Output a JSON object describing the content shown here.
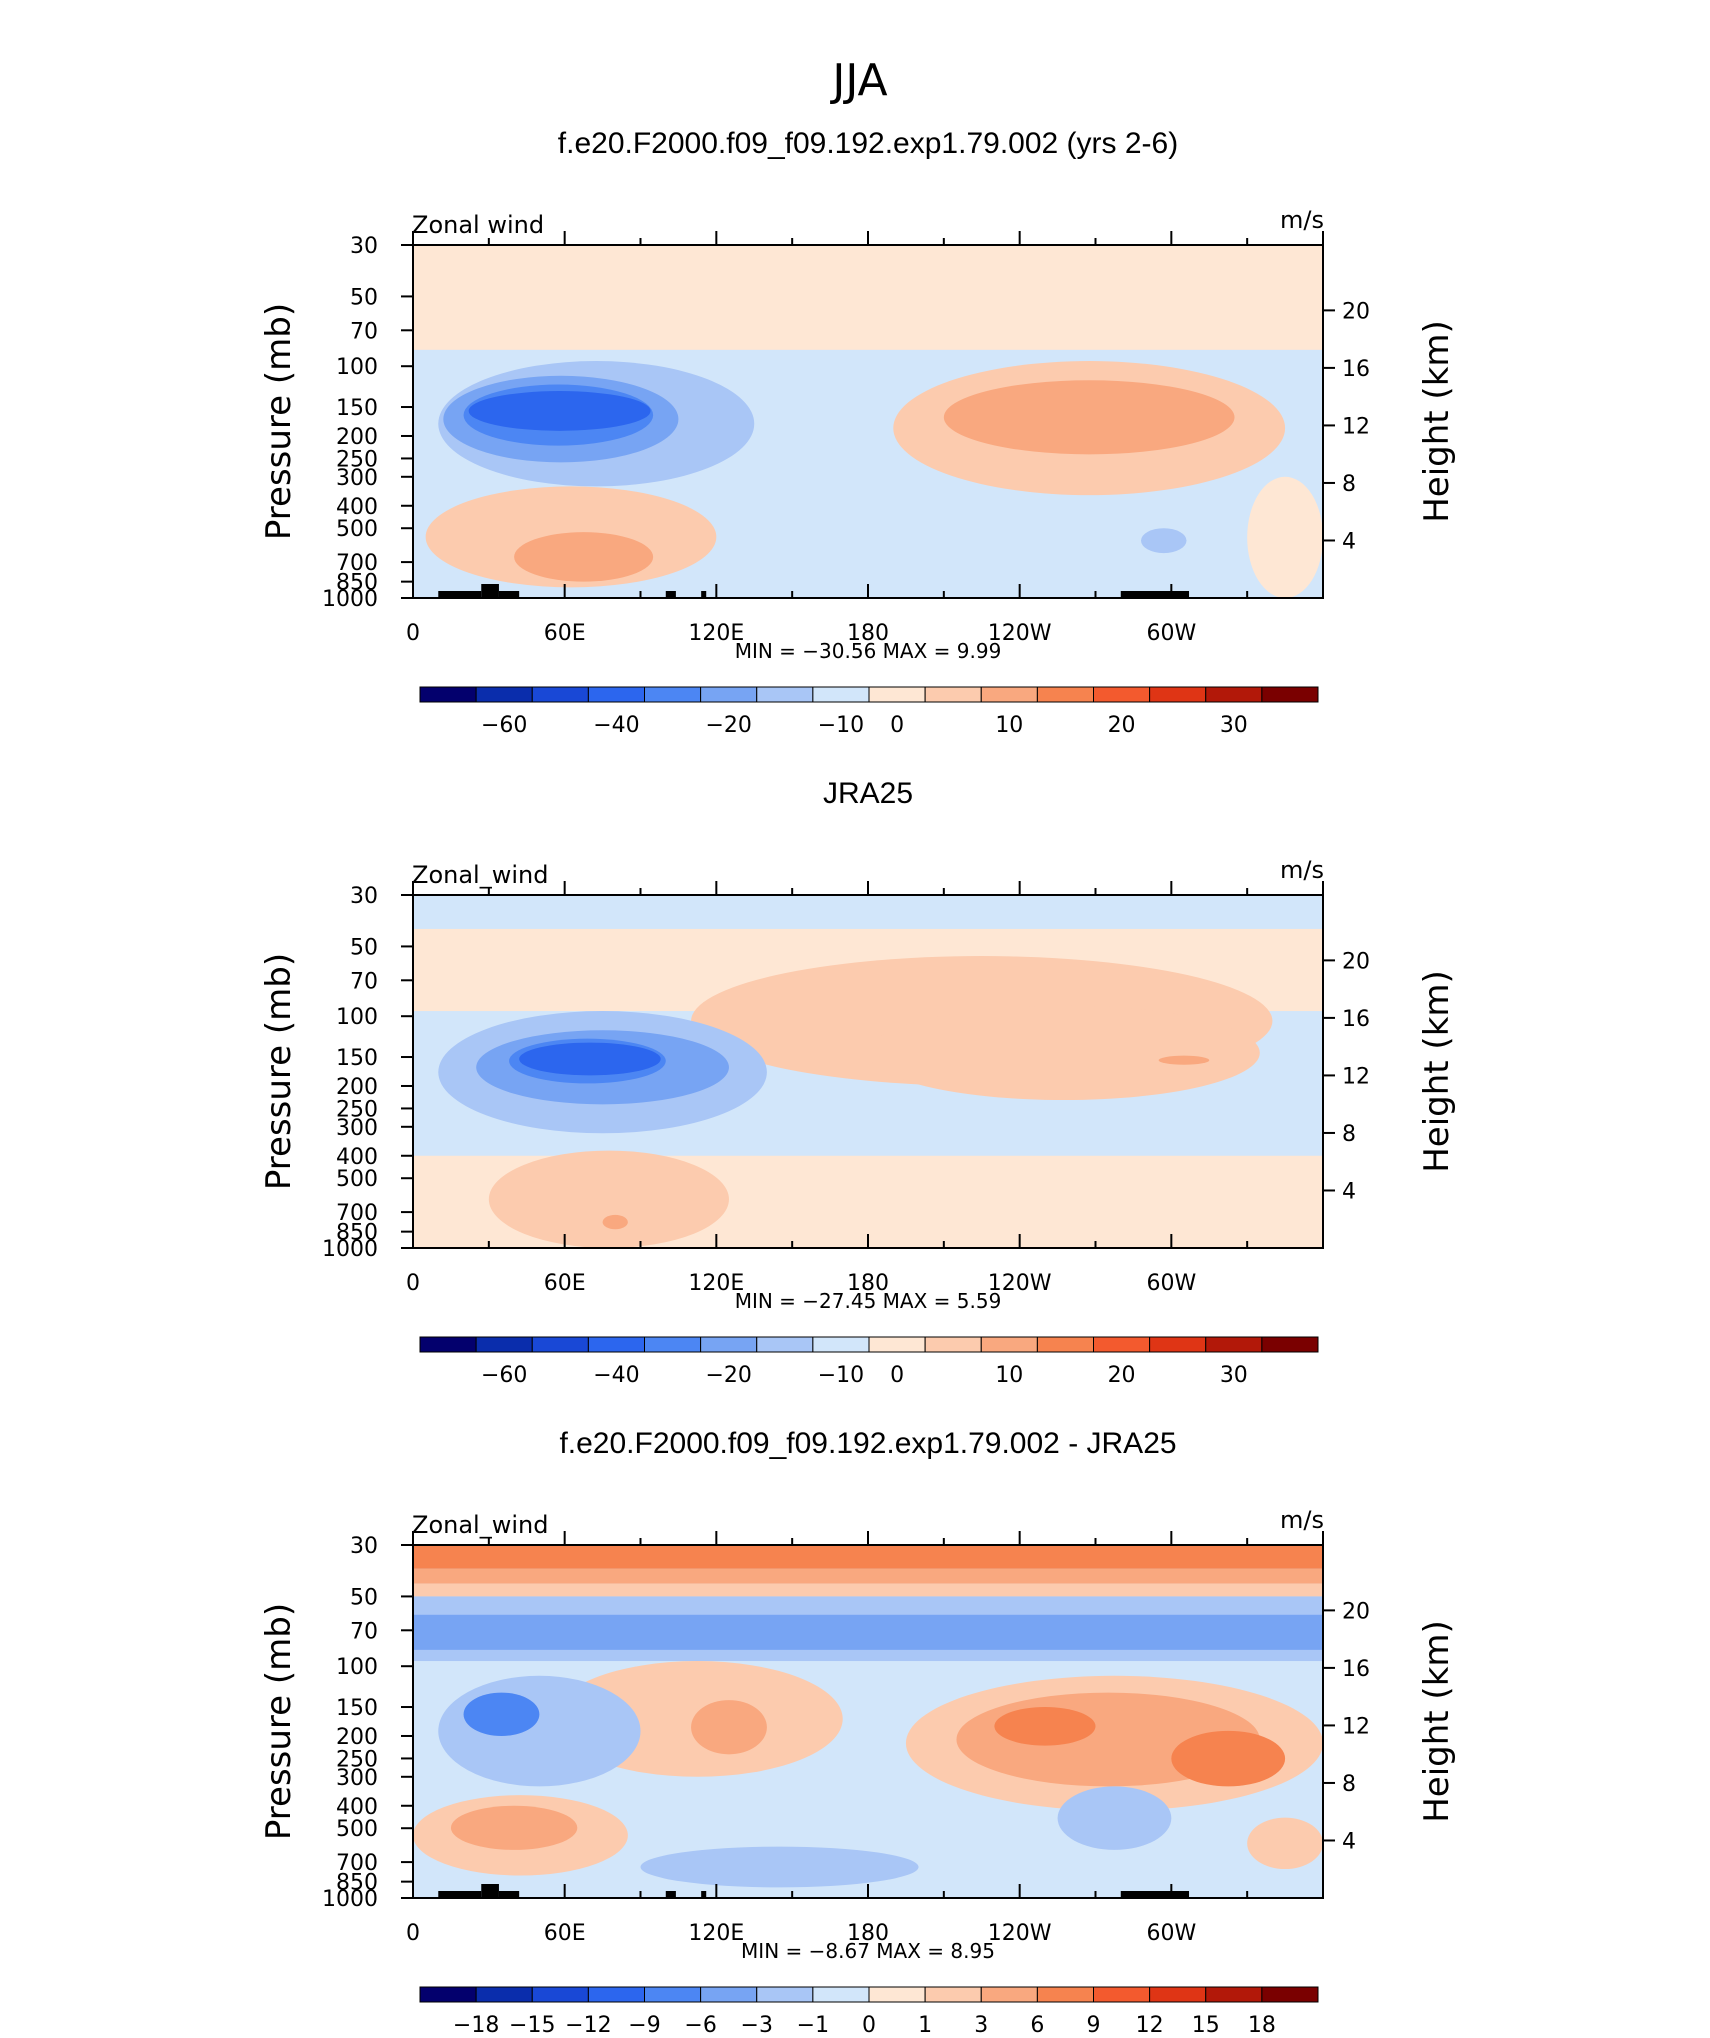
{
  "figure": {
    "title": "JJA"
  },
  "palettes": {
    "cool_to_warm_16": [
      "#03006d",
      "#0a2dac",
      "#1948d6",
      "#2c66ee",
      "#4c86f3",
      "#77a4f3",
      "#a9c6f6",
      "#d2e6fa",
      "#fee7d4",
      "#fccbae",
      "#f9a87f",
      "#f6834f",
      "#f35a2e",
      "#df3515",
      "#b21809",
      "#7a0000"
    ]
  },
  "chart_data": [
    {
      "type": "contour",
      "panel_title": "f.e20.F2000.f09_f09.192.exp1.79.002 (yrs 2-6)",
      "variable_label": "Zonal wind",
      "units_label": "m/s",
      "ylabel": "Pressure (mb)",
      "ylabel_right": "Height (km)",
      "x_ticks": [
        "0",
        "60E",
        "120E",
        "180",
        "120W",
        "60W"
      ],
      "x_range_deg": [
        0,
        360
      ],
      "y_ticks": [
        "30",
        "50",
        "70",
        "100",
        "150",
        "200",
        "250",
        "300",
        "400",
        "500",
        "700",
        "850",
        "1000"
      ],
      "y_ticks_right": [
        "20",
        "16",
        "12",
        "8",
        "4"
      ],
      "min_max_text": "MIN = −30.56   MAX =    9.99",
      "colorbar_labels": [
        "−60",
        "−40",
        "−20",
        "−10",
        "0",
        "10",
        "20",
        "30"
      ],
      "topography_bars": [
        [
          10,
          27
        ],
        [
          27,
          34
        ],
        [
          34,
          42
        ],
        [
          100,
          104
        ],
        [
          114,
          116
        ],
        [
          280,
          307
        ]
      ],
      "background_level": 8,
      "blobs": [
        {
          "level": 7,
          "lon": [
            0,
            360
          ],
          "p": [
            85,
            1000
          ],
          "shape": "band"
        },
        {
          "level": 6,
          "lon": [
            10,
            135
          ],
          "p": [
            95,
            330
          ],
          "shape": "ellipse"
        },
        {
          "level": 5,
          "lon": [
            12,
            105
          ],
          "p": [
            110,
            260
          ],
          "shape": "ellipse"
        },
        {
          "level": 4,
          "lon": [
            20,
            95
          ],
          "p": [
            120,
            220
          ],
          "shape": "ellipse"
        },
        {
          "level": 3,
          "lon": [
            22,
            94
          ],
          "p": [
            128,
            190
          ],
          "shape": "ellipse"
        },
        {
          "level": 9,
          "lon": [
            5,
            120
          ],
          "p": [
            330,
            900
          ],
          "shape": "ellipse"
        },
        {
          "level": 10,
          "lon": [
            40,
            95
          ],
          "p": [
            520,
            850
          ],
          "shape": "ellipse"
        },
        {
          "level": 9,
          "lon": [
            190,
            345
          ],
          "p": [
            95,
            360
          ],
          "shape": "ellipse"
        },
        {
          "level": 10,
          "lon": [
            210,
            325
          ],
          "p": [
            115,
            240
          ],
          "shape": "ellipse"
        },
        {
          "level": 6,
          "lon": [
            288,
            306
          ],
          "p": [
            500,
            640
          ],
          "shape": "ellipse"
        },
        {
          "level": 8,
          "lon": [
            330,
            360
          ],
          "p": [
            300,
            1000
          ],
          "shape": "ellipse"
        }
      ]
    },
    {
      "type": "contour",
      "panel_title": "JRA25",
      "variable_label": "Zonal_wind",
      "units_label": "m/s",
      "ylabel": "Pressure (mb)",
      "ylabel_right": "Height (km)",
      "x_ticks": [
        "0",
        "60E",
        "120E",
        "180",
        "120W",
        "60W"
      ],
      "x_range_deg": [
        0,
        360
      ],
      "y_ticks": [
        "30",
        "50",
        "70",
        "100",
        "150",
        "200",
        "250",
        "300",
        "400",
        "500",
        "700",
        "850",
        "1000"
      ],
      "y_ticks_right": [
        "20",
        "16",
        "12",
        "8",
        "4"
      ],
      "min_max_text": "MIN = −27.45   MAX =    5.59",
      "colorbar_labels": [
        "−60",
        "−40",
        "−20",
        "−10",
        "0",
        "10",
        "20",
        "30"
      ],
      "topography_bars": [],
      "background_level": 7,
      "blobs": [
        {
          "level": 8,
          "lon": [
            0,
            360
          ],
          "p": [
            42,
            1000
          ],
          "shape": "band"
        },
        {
          "level": 7,
          "lon": [
            0,
            360
          ],
          "p": [
            30,
            42
          ],
          "shape": "band"
        },
        {
          "level": 7,
          "lon": [
            0,
            360
          ],
          "p": [
            95,
            400
          ],
          "shape": "band"
        },
        {
          "level": 9,
          "lon": [
            110,
            340
          ],
          "p": [
            55,
            200
          ],
          "shape": "ellipse"
        },
        {
          "level": 9,
          "lon": [
            180,
            335
          ],
          "p": [
            90,
            230
          ],
          "shape": "ellipse"
        },
        {
          "level": 10,
          "lon": [
            295,
            315
          ],
          "p": [
            148,
            162
          ],
          "shape": "ellipse"
        },
        {
          "level": 6,
          "lon": [
            10,
            140
          ],
          "p": [
            95,
            320
          ],
          "shape": "ellipse"
        },
        {
          "level": 5,
          "lon": [
            25,
            125
          ],
          "p": [
            115,
            240
          ],
          "shape": "ellipse"
        },
        {
          "level": 4,
          "lon": [
            38,
            100
          ],
          "p": [
            125,
            195
          ],
          "shape": "ellipse"
        },
        {
          "level": 3,
          "lon": [
            42,
            98
          ],
          "p": [
            130,
            180
          ],
          "shape": "ellipse"
        },
        {
          "level": 9,
          "lon": [
            30,
            125
          ],
          "p": [
            380,
            1000
          ],
          "shape": "ellipse"
        },
        {
          "level": 10,
          "lon": [
            75,
            85
          ],
          "p": [
            720,
            830
          ],
          "shape": "ellipse"
        }
      ]
    },
    {
      "type": "contour",
      "panel_title": "f.e20.F2000.f09_f09.192.exp1.79.002 - JRA25",
      "variable_label": "Zonal_wind",
      "units_label": "m/s",
      "ylabel": "Pressure (mb)",
      "ylabel_right": "Height (km)",
      "x_ticks": [
        "0",
        "60E",
        "120E",
        "180",
        "120W",
        "60W"
      ],
      "x_range_deg": [
        0,
        360
      ],
      "y_ticks": [
        "30",
        "50",
        "70",
        "100",
        "150",
        "200",
        "250",
        "300",
        "400",
        "500",
        "700",
        "850",
        "1000"
      ],
      "y_ticks_right": [
        "20",
        "16",
        "12",
        "8",
        "4"
      ],
      "min_max_text": "MIN =   −8.67   MAX =    8.95",
      "colorbar_labels": [
        "−18",
        "−15",
        "−12",
        "−9",
        "−6",
        "−3",
        "−1",
        "0",
        "1",
        "3",
        "6",
        "9",
        "12",
        "15",
        "18"
      ],
      "topography_bars": [
        [
          10,
          27
        ],
        [
          27,
          34
        ],
        [
          34,
          42
        ],
        [
          100,
          104
        ],
        [
          114,
          116
        ],
        [
          280,
          307
        ]
      ],
      "background_level": 7,
      "blobs": [
        {
          "level": 11,
          "lon": [
            0,
            360
          ],
          "p": [
            30,
            38
          ],
          "shape": "band"
        },
        {
          "level": 10,
          "lon": [
            0,
            360
          ],
          "p": [
            38,
            44
          ],
          "shape": "band"
        },
        {
          "level": 9,
          "lon": [
            0,
            360
          ],
          "p": [
            44,
            50
          ],
          "shape": "band"
        },
        {
          "level": 6,
          "lon": [
            0,
            360
          ],
          "p": [
            50,
            95
          ],
          "shape": "band"
        },
        {
          "level": 5,
          "lon": [
            0,
            360
          ],
          "p": [
            60,
            85
          ],
          "shape": "band"
        },
        {
          "level": 9,
          "lon": [
            55,
            170
          ],
          "p": [
            95,
            300
          ],
          "shape": "ellipse"
        },
        {
          "level": 10,
          "lon": [
            110,
            140
          ],
          "p": [
            140,
            240
          ],
          "shape": "ellipse"
        },
        {
          "level": 6,
          "lon": [
            10,
            90
          ],
          "p": [
            110,
            330
          ],
          "shape": "ellipse"
        },
        {
          "level": 4,
          "lon": [
            20,
            50
          ],
          "p": [
            130,
            200
          ],
          "shape": "ellipse"
        },
        {
          "level": 9,
          "lon": [
            195,
            360
          ],
          "p": [
            110,
            420
          ],
          "shape": "ellipse"
        },
        {
          "level": 10,
          "lon": [
            215,
            335
          ],
          "p": [
            130,
            330
          ],
          "shape": "ellipse"
        },
        {
          "level": 11,
          "lon": [
            230,
            270
          ],
          "p": [
            150,
            220
          ],
          "shape": "ellipse"
        },
        {
          "level": 11,
          "lon": [
            300,
            345
          ],
          "p": [
            190,
            330
          ],
          "shape": "ellipse"
        },
        {
          "level": 6,
          "lon": [
            255,
            300
          ],
          "p": [
            330,
            620
          ],
          "shape": "ellipse"
        },
        {
          "level": 9,
          "lon": [
            0,
            85
          ],
          "p": [
            360,
            800
          ],
          "shape": "ellipse"
        },
        {
          "level": 10,
          "lon": [
            15,
            65
          ],
          "p": [
            400,
            620
          ],
          "shape": "ellipse"
        },
        {
          "level": 6,
          "lon": [
            90,
            200
          ],
          "p": [
            600,
            900
          ],
          "shape": "ellipse"
        },
        {
          "level": 9,
          "lon": [
            330,
            360
          ],
          "p": [
            450,
            750
          ],
          "shape": "ellipse"
        }
      ]
    }
  ]
}
